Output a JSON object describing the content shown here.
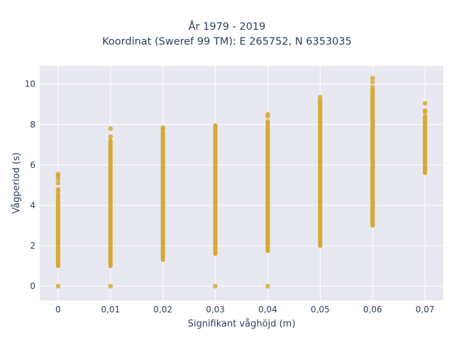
{
  "chart_data": {
    "type": "scatter",
    "title_lines": [
      "År 1979 - 2019",
      "Koordinat (Sweref 99 TM): E 265752, N 6353035"
    ],
    "xlabel": "Signifikant våghöjd (m)",
    "ylabel": "Vågperiod (s)",
    "x_categories": [
      "0",
      "0,01",
      "0,02",
      "0,03",
      "0,04",
      "0,05",
      "0,06",
      "0,07"
    ],
    "x_values": [
      0,
      0.01,
      0.02,
      0.03,
      0.04,
      0.05,
      0.06,
      0.07
    ],
    "xlim": [
      -0.0035,
      0.0735
    ],
    "ylim": [
      -0.7,
      10.9
    ],
    "y_ticks": [
      0,
      2,
      4,
      6,
      8,
      10
    ],
    "grid": true,
    "marker_color": "#d4a52a",
    "plot_bg": "#e8e8f0",
    "series": [
      {
        "x": 0,
        "continuous_range": [
          1.0,
          4.55
        ],
        "isolated_points": [
          0,
          4.7,
          4.8,
          5.1,
          5.3,
          5.45,
          5.55
        ]
      },
      {
        "x": 0.01,
        "continuous_range": [
          1.0,
          7.2
        ],
        "isolated_points": [
          0,
          7.4,
          7.8
        ]
      },
      {
        "x": 0.02,
        "continuous_range": [
          1.3,
          7.6
        ],
        "isolated_points": [
          7.75,
          7.85
        ]
      },
      {
        "x": 0.03,
        "continuous_range": [
          1.6,
          7.95
        ],
        "isolated_points": [
          0
        ]
      },
      {
        "x": 0.04,
        "continuous_range": [
          1.75,
          8.15
        ],
        "isolated_points": [
          0,
          8.4,
          8.5
        ]
      },
      {
        "x": 0.05,
        "continuous_range": [
          2.0,
          9.2
        ],
        "isolated_points": [
          9.35
        ]
      },
      {
        "x": 0.06,
        "continuous_range": [
          3.0,
          9.75
        ],
        "isolated_points": [
          9.85,
          10.1,
          10.3
        ]
      },
      {
        "x": 0.07,
        "continuous_range": [
          5.6,
          8.4
        ],
        "isolated_points": [
          8.6,
          8.7,
          9.05
        ]
      }
    ]
  }
}
